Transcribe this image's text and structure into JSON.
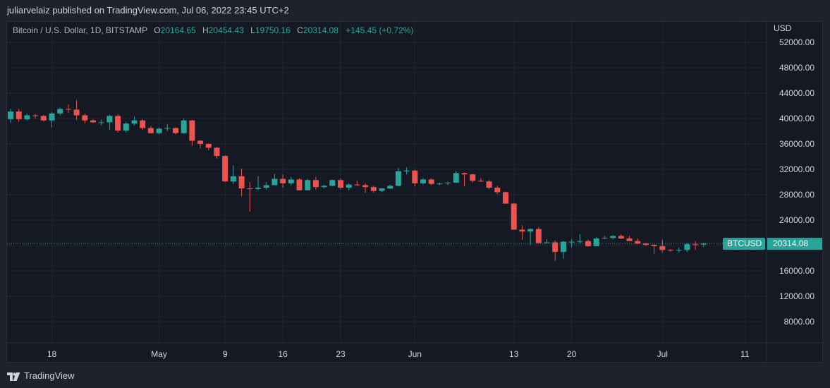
{
  "header": {
    "published_line": "juliarvelaiz published on TradingView.com, Jul 06, 2022 23:45 UTC+2"
  },
  "legend": {
    "symbol": "Bitcoin / U.S. Dollar, 1D, BITSTAMP",
    "o_label": "O",
    "o_value": "20164.65",
    "h_label": "H",
    "h_value": "20454.43",
    "l_label": "L",
    "l_value": "19750.16",
    "c_label": "C",
    "c_value": "20314.08",
    "change": "+145.45 (+0.72%)"
  },
  "price_axis": {
    "unit_label": "USD"
  },
  "last_price": {
    "ticker": "BTCUSD",
    "value": "20314.08"
  },
  "footer": {
    "brand": "TradingView"
  },
  "colors": {
    "up": "#26a69a",
    "down": "#ef5350",
    "background": "#151924",
    "grid": "#232632",
    "text": "#d1d4dc"
  },
  "chart_data": {
    "type": "candlestick",
    "title": "Bitcoin / U.S. Dollar, 1D, BITSTAMP",
    "ylabel": "USD",
    "ylim": [
      4000,
      56000
    ],
    "y_ticks": [
      "52000.00",
      "48000.00",
      "44000.00",
      "40000.00",
      "36000.00",
      "32000.00",
      "28000.00",
      "24000.00",
      "20000.00",
      "16000.00",
      "12000.00",
      "8000.00"
    ],
    "x_ticks": [
      "18",
      "May",
      "9",
      "16",
      "23",
      "Jun",
      "13",
      "20",
      "Jul",
      "11"
    ],
    "x_tick_days": [
      0,
      13,
      21,
      28,
      35,
      44,
      56,
      63,
      74,
      84
    ],
    "x_tick_dates": [
      "2022-04-18",
      "2022-05-01",
      "2022-05-09",
      "2022-05-16",
      "2022-05-23",
      "2022-06-01",
      "2022-06-13",
      "2022-06-20",
      "2022-07-01",
      "2022-07-11"
    ],
    "x_range_days": [
      -5,
      90
    ],
    "last_price_line": 20314.08,
    "candles": [
      {
        "date": "2022-04-13",
        "o": 39900,
        "h": 41500,
        "l": 39300,
        "c": 41100
      },
      {
        "date": "2022-04-14",
        "o": 41100,
        "h": 41500,
        "l": 39500,
        "c": 39900
      },
      {
        "date": "2022-04-15",
        "o": 39900,
        "h": 40800,
        "l": 39700,
        "c": 40500
      },
      {
        "date": "2022-04-16",
        "o": 40500,
        "h": 40700,
        "l": 40000,
        "c": 40400
      },
      {
        "date": "2022-04-17",
        "o": 40400,
        "h": 40600,
        "l": 39500,
        "c": 39700
      },
      {
        "date": "2022-04-18",
        "o": 39700,
        "h": 41000,
        "l": 38600,
        "c": 40800
      },
      {
        "date": "2022-04-19",
        "o": 40800,
        "h": 41700,
        "l": 40500,
        "c": 41500
      },
      {
        "date": "2022-04-20",
        "o": 41500,
        "h": 42200,
        "l": 40900,
        "c": 41400
      },
      {
        "date": "2022-04-21",
        "o": 41400,
        "h": 42900,
        "l": 39800,
        "c": 40500
      },
      {
        "date": "2022-04-22",
        "o": 40500,
        "h": 40800,
        "l": 39200,
        "c": 39700
      },
      {
        "date": "2022-04-23",
        "o": 39700,
        "h": 39900,
        "l": 39300,
        "c": 39400
      },
      {
        "date": "2022-04-24",
        "o": 39400,
        "h": 39800,
        "l": 38900,
        "c": 39400
      },
      {
        "date": "2022-04-25",
        "o": 39400,
        "h": 40600,
        "l": 38200,
        "c": 40400
      },
      {
        "date": "2022-04-26",
        "o": 40400,
        "h": 40700,
        "l": 37800,
        "c": 38100
      },
      {
        "date": "2022-04-27",
        "o": 38100,
        "h": 39400,
        "l": 37800,
        "c": 39200
      },
      {
        "date": "2022-04-28",
        "o": 39200,
        "h": 40300,
        "l": 38900,
        "c": 39700
      },
      {
        "date": "2022-04-29",
        "o": 39700,
        "h": 39900,
        "l": 38200,
        "c": 38500
      },
      {
        "date": "2022-04-30",
        "o": 38500,
        "h": 38800,
        "l": 37600,
        "c": 37700
      },
      {
        "date": "2022-05-01",
        "o": 37700,
        "h": 38600,
        "l": 37500,
        "c": 38400
      },
      {
        "date": "2022-05-02",
        "o": 38400,
        "h": 39100,
        "l": 38000,
        "c": 38500
      },
      {
        "date": "2022-05-03",
        "o": 38500,
        "h": 38600,
        "l": 37500,
        "c": 37700
      },
      {
        "date": "2022-05-04",
        "o": 37700,
        "h": 40000,
        "l": 37600,
        "c": 39700
      },
      {
        "date": "2022-05-05",
        "o": 39700,
        "h": 39800,
        "l": 35700,
        "c": 36500
      },
      {
        "date": "2022-05-06",
        "o": 36500,
        "h": 36600,
        "l": 35300,
        "c": 36000
      },
      {
        "date": "2022-05-07",
        "o": 36000,
        "h": 36100,
        "l": 35000,
        "c": 35400
      },
      {
        "date": "2022-05-08",
        "o": 35400,
        "h": 35500,
        "l": 33700,
        "c": 34100
      },
      {
        "date": "2022-05-09",
        "o": 34100,
        "h": 34200,
        "l": 30000,
        "c": 30100
      },
      {
        "date": "2022-05-10",
        "o": 30100,
        "h": 32600,
        "l": 29700,
        "c": 30900
      },
      {
        "date": "2022-05-11",
        "o": 30900,
        "h": 32100,
        "l": 27800,
        "c": 29000
      },
      {
        "date": "2022-05-12",
        "o": 29000,
        "h": 30000,
        "l": 25300,
        "c": 28900
      },
      {
        "date": "2022-05-13",
        "o": 28900,
        "h": 30900,
        "l": 28700,
        "c": 29100
      },
      {
        "date": "2022-05-14",
        "o": 29100,
        "h": 30000,
        "l": 28800,
        "c": 29500
      },
      {
        "date": "2022-05-15",
        "o": 29500,
        "h": 31300,
        "l": 29500,
        "c": 30500
      },
      {
        "date": "2022-05-16",
        "o": 30500,
        "h": 31200,
        "l": 29100,
        "c": 29800
      },
      {
        "date": "2022-05-17",
        "o": 29800,
        "h": 30800,
        "l": 29500,
        "c": 30400
      },
      {
        "date": "2022-05-18",
        "o": 30400,
        "h": 30600,
        "l": 28700,
        "c": 28700
      },
      {
        "date": "2022-05-19",
        "o": 28700,
        "h": 30500,
        "l": 28700,
        "c": 30300
      },
      {
        "date": "2022-05-20",
        "o": 30300,
        "h": 30800,
        "l": 28800,
        "c": 29200
      },
      {
        "date": "2022-05-21",
        "o": 29200,
        "h": 29600,
        "l": 29000,
        "c": 29400
      },
      {
        "date": "2022-05-22",
        "o": 29400,
        "h": 30400,
        "l": 29300,
        "c": 30300
      },
      {
        "date": "2022-05-23",
        "o": 30300,
        "h": 30600,
        "l": 28900,
        "c": 29100
      },
      {
        "date": "2022-05-24",
        "o": 29100,
        "h": 29800,
        "l": 28700,
        "c": 29600
      },
      {
        "date": "2022-05-25",
        "o": 29600,
        "h": 30200,
        "l": 29400,
        "c": 29500
      },
      {
        "date": "2022-05-26",
        "o": 29500,
        "h": 29800,
        "l": 28300,
        "c": 29200
      },
      {
        "date": "2022-05-27",
        "o": 29200,
        "h": 29400,
        "l": 28300,
        "c": 28600
      },
      {
        "date": "2022-05-28",
        "o": 28600,
        "h": 29000,
        "l": 28400,
        "c": 29000
      },
      {
        "date": "2022-05-29",
        "o": 29000,
        "h": 29600,
        "l": 28900,
        "c": 29400
      },
      {
        "date": "2022-05-30",
        "o": 29400,
        "h": 32200,
        "l": 29300,
        "c": 31700
      },
      {
        "date": "2022-05-31",
        "o": 31700,
        "h": 32300,
        "l": 31200,
        "c": 31800
      },
      {
        "date": "2022-06-01",
        "o": 31800,
        "h": 31900,
        "l": 29300,
        "c": 29800
      },
      {
        "date": "2022-06-02",
        "o": 29800,
        "h": 30600,
        "l": 29600,
        "c": 30400
      },
      {
        "date": "2022-06-03",
        "o": 30400,
        "h": 30600,
        "l": 29500,
        "c": 29700
      },
      {
        "date": "2022-06-04",
        "o": 29700,
        "h": 29900,
        "l": 29500,
        "c": 29800
      },
      {
        "date": "2022-06-05",
        "o": 29800,
        "h": 30100,
        "l": 29500,
        "c": 29900
      },
      {
        "date": "2022-06-06",
        "o": 29900,
        "h": 31700,
        "l": 29900,
        "c": 31400
      },
      {
        "date": "2022-06-07",
        "o": 31400,
        "h": 31500,
        "l": 29300,
        "c": 31200
      },
      {
        "date": "2022-06-08",
        "o": 31200,
        "h": 31300,
        "l": 29900,
        "c": 30200
      },
      {
        "date": "2022-06-09",
        "o": 30200,
        "h": 30600,
        "l": 30000,
        "c": 30100
      },
      {
        "date": "2022-06-10",
        "o": 30100,
        "h": 30300,
        "l": 28900,
        "c": 29100
      },
      {
        "date": "2022-06-11",
        "o": 29100,
        "h": 29400,
        "l": 28100,
        "c": 28400
      },
      {
        "date": "2022-06-12",
        "o": 28400,
        "h": 28500,
        "l": 26600,
        "c": 26600
      },
      {
        "date": "2022-06-13",
        "o": 26600,
        "h": 26700,
        "l": 22600,
        "c": 22500
      },
      {
        "date": "2022-06-14",
        "o": 22500,
        "h": 23200,
        "l": 20900,
        "c": 22200
      },
      {
        "date": "2022-06-15",
        "o": 22200,
        "h": 22700,
        "l": 20100,
        "c": 22600
      },
      {
        "date": "2022-06-16",
        "o": 22600,
        "h": 22900,
        "l": 20300,
        "c": 20400
      },
      {
        "date": "2022-06-17",
        "o": 20400,
        "h": 21000,
        "l": 20300,
        "c": 20500
      },
      {
        "date": "2022-06-18",
        "o": 20500,
        "h": 20800,
        "l": 17600,
        "c": 19000
      },
      {
        "date": "2022-06-19",
        "o": 19000,
        "h": 20700,
        "l": 17900,
        "c": 20600
      },
      {
        "date": "2022-06-20",
        "o": 20600,
        "h": 21000,
        "l": 19700,
        "c": 20600
      },
      {
        "date": "2022-06-21",
        "o": 20600,
        "h": 21800,
        "l": 20400,
        "c": 20700
      },
      {
        "date": "2022-06-22",
        "o": 20700,
        "h": 20900,
        "l": 19800,
        "c": 19900
      },
      {
        "date": "2022-06-23",
        "o": 19900,
        "h": 21300,
        "l": 19900,
        "c": 21100
      },
      {
        "date": "2022-06-24",
        "o": 21100,
        "h": 21500,
        "l": 21000,
        "c": 21200
      },
      {
        "date": "2022-06-25",
        "o": 21200,
        "h": 21600,
        "l": 21000,
        "c": 21500
      },
      {
        "date": "2022-06-26",
        "o": 21500,
        "h": 21800,
        "l": 21000,
        "c": 21100
      },
      {
        "date": "2022-06-27",
        "o": 21100,
        "h": 21500,
        "l": 20700,
        "c": 20700
      },
      {
        "date": "2022-06-28",
        "o": 20700,
        "h": 21100,
        "l": 20200,
        "c": 20300
      },
      {
        "date": "2022-06-29",
        "o": 20300,
        "h": 20400,
        "l": 19900,
        "c": 20100
      },
      {
        "date": "2022-06-30",
        "o": 20100,
        "h": 20200,
        "l": 18700,
        "c": 19900
      },
      {
        "date": "2022-07-01",
        "o": 19900,
        "h": 20900,
        "l": 18900,
        "c": 19300
      },
      {
        "date": "2022-07-02",
        "o": 19300,
        "h": 19400,
        "l": 19000,
        "c": 19200
      },
      {
        "date": "2022-07-03",
        "o": 19200,
        "h": 19700,
        "l": 18900,
        "c": 19300
      },
      {
        "date": "2022-07-04",
        "o": 19300,
        "h": 20400,
        "l": 19000,
        "c": 20200
      },
      {
        "date": "2022-07-05",
        "o": 20200,
        "h": 20700,
        "l": 19300,
        "c": 20100
      },
      {
        "date": "2022-07-06",
        "o": 20164.65,
        "h": 20454.43,
        "l": 19750.16,
        "c": 20314.08
      }
    ]
  }
}
